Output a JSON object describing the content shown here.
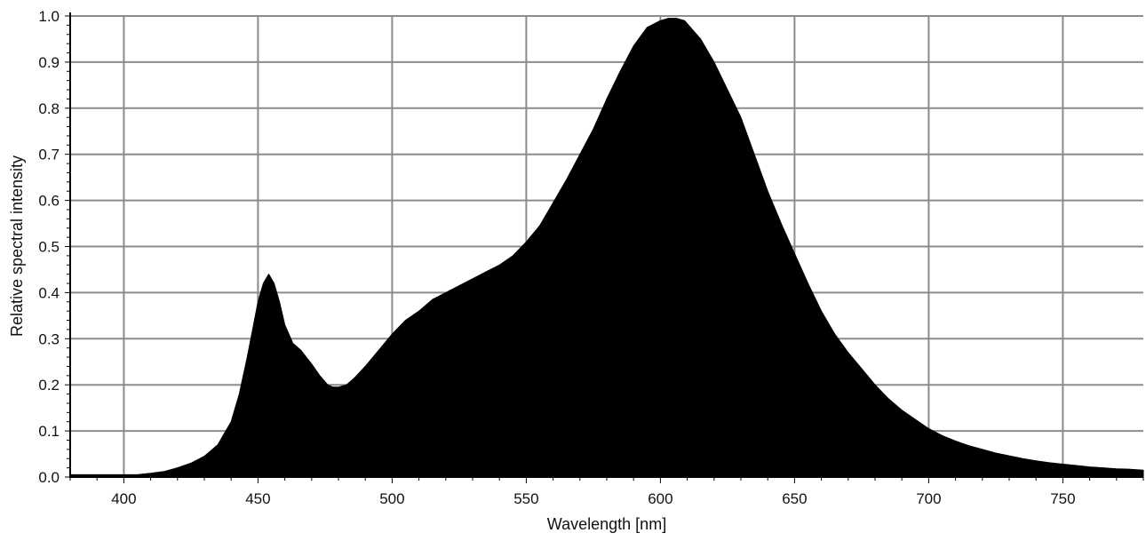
{
  "chart_data": {
    "type": "area",
    "title": "",
    "xlabel": "Wavelength [nm]",
    "ylabel": "Relative spectral intensity",
    "xlim": [
      380,
      780
    ],
    "ylim": [
      0,
      1.0
    ],
    "x_ticks": [
      "400",
      "450",
      "500",
      "550",
      "600",
      "650",
      "700",
      "750"
    ],
    "y_ticks": [
      "0.0",
      "0.1",
      "0.2",
      "0.3",
      "0.4",
      "0.5",
      "0.6",
      "0.7",
      "0.8",
      "0.9",
      "1.0"
    ],
    "grid": true,
    "fill_color": "#000000",
    "grid_color": "#8c8c8c",
    "series": [
      {
        "x": [
          380,
          395,
          405,
          410,
          415,
          420,
          425,
          430,
          435,
          440,
          443,
          446,
          448,
          450,
          452,
          454,
          456,
          458,
          460,
          463,
          466,
          470,
          473,
          476,
          478,
          480,
          483,
          486,
          490,
          495,
          500,
          505,
          510,
          515,
          520,
          525,
          530,
          535,
          540,
          545,
          550,
          555,
          560,
          565,
          570,
          575,
          580,
          585,
          590,
          595,
          600,
          603,
          606,
          609,
          612,
          615,
          620,
          625,
          630,
          635,
          640,
          645,
          650,
          655,
          660,
          665,
          670,
          675,
          680,
          685,
          690,
          695,
          700,
          705,
          710,
          715,
          720,
          725,
          730,
          735,
          740,
          745,
          750,
          755,
          760,
          765,
          770,
          775,
          780
        ],
        "y": [
          0.005,
          0.005,
          0.005,
          0.008,
          0.012,
          0.02,
          0.03,
          0.045,
          0.07,
          0.12,
          0.18,
          0.26,
          0.32,
          0.38,
          0.42,
          0.44,
          0.42,
          0.38,
          0.33,
          0.29,
          0.275,
          0.245,
          0.22,
          0.2,
          0.195,
          0.195,
          0.2,
          0.215,
          0.24,
          0.275,
          0.31,
          0.34,
          0.36,
          0.385,
          0.4,
          0.415,
          0.43,
          0.445,
          0.46,
          0.48,
          0.51,
          0.545,
          0.595,
          0.645,
          0.7,
          0.755,
          0.82,
          0.88,
          0.935,
          0.975,
          0.99,
          0.995,
          0.995,
          0.99,
          0.97,
          0.95,
          0.9,
          0.84,
          0.78,
          0.7,
          0.62,
          0.55,
          0.485,
          0.42,
          0.36,
          0.31,
          0.27,
          0.235,
          0.2,
          0.17,
          0.145,
          0.125,
          0.105,
          0.09,
          0.078,
          0.068,
          0.06,
          0.052,
          0.046,
          0.04,
          0.035,
          0.031,
          0.028,
          0.025,
          0.022,
          0.02,
          0.018,
          0.017,
          0.015
        ]
      }
    ]
  }
}
